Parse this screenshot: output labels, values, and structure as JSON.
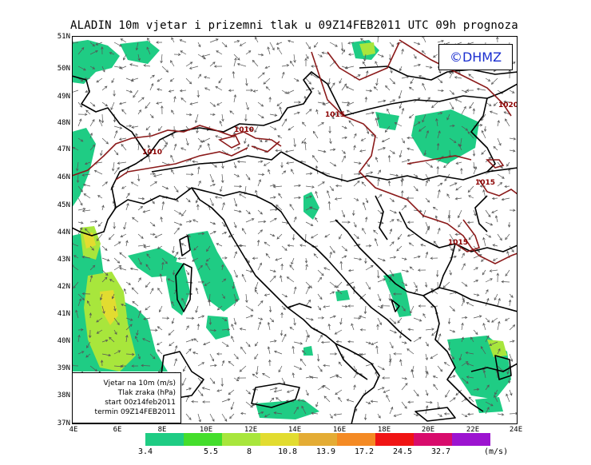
{
  "title": "ALADIN 10m vjetar i prizemni tlak u 09Z14FEB2011 UTC 09h prognoza",
  "logo_text": "©DHMZ",
  "info_box": {
    "line1": "Vjetar na 10m (m/s)",
    "line2": "Tlak zraka (hPa)",
    "line3": "start 00z14feb2011",
    "line4": "termin 09Z14FEB2011"
  },
  "lat_labels": [
    "51N",
    "50N",
    "49N",
    "48N",
    "47N",
    "46N",
    "45N",
    "44N",
    "43N",
    "42N",
    "41N",
    "40N",
    "39N",
    "38N",
    "37N"
  ],
  "lon_labels": [
    "4E",
    "6E",
    "8E",
    "10E",
    "12E",
    "14E",
    "16E",
    "18E",
    "20E",
    "22E",
    "24E"
  ],
  "isobar_labels": [
    "1010",
    "1010",
    "1015",
    "1015",
    "1015",
    "1020"
  ],
  "legend": {
    "colors": [
      "#1fcc84",
      "#44de2c",
      "#a8e63c",
      "#e2dc30",
      "#e4ac34",
      "#f48a24",
      "#f01414",
      "#d80c6c",
      "#9c14d0"
    ],
    "values": [
      "3.4",
      "5.5",
      "8",
      "10.8",
      "13.9",
      "17.2",
      "24.5",
      "32.7"
    ],
    "unit": "(m/s)"
  },
  "colors": {
    "isobar": "#8b1a1a",
    "border": "#000000",
    "arrow": "#555555",
    "wind_low": "#1fcc84",
    "wind_mid": "#a8e63c"
  }
}
